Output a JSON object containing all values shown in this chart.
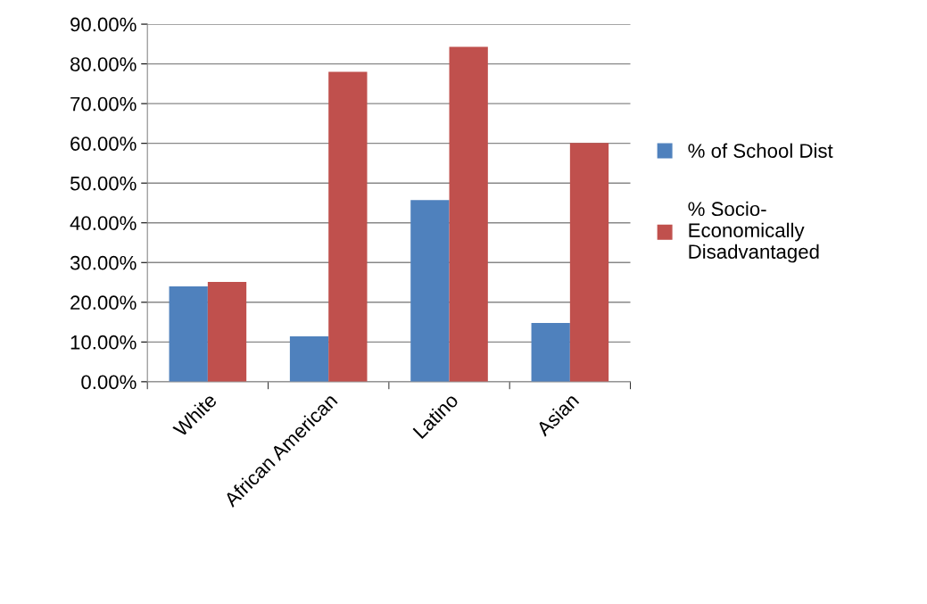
{
  "chart_data": {
    "type": "bar",
    "categories": [
      "White",
      "African American",
      "Latino",
      "Asian"
    ],
    "series": [
      {
        "name": "% of School Dist",
        "color": "#4f81bd",
        "values": [
          24.0,
          11.4,
          45.7,
          14.8
        ]
      },
      {
        "name": "% Socio-\nEconomically\nDisadvantaged",
        "color": "#c0504d",
        "values": [
          25.1,
          78.0,
          84.3,
          60.1
        ]
      }
    ],
    "ylim": [
      0,
      90
    ],
    "yticks": [
      {
        "value": 0,
        "label": "0.00%"
      },
      {
        "value": 10,
        "label": "10.00%"
      },
      {
        "value": 20,
        "label": "20.00%"
      },
      {
        "value": 30,
        "label": "30.00%"
      },
      {
        "value": 40,
        "label": "40.00%"
      },
      {
        "value": 50,
        "label": "50.00%"
      },
      {
        "value": 60,
        "label": "60.00%"
      },
      {
        "value": 70,
        "label": "70.00%"
      },
      {
        "value": 80,
        "label": "80.00%"
      },
      {
        "value": 90,
        "label": "90.00%"
      }
    ],
    "grid": "y",
    "legend": "right"
  }
}
